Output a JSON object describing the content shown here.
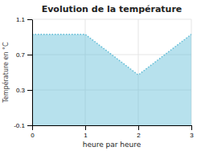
{
  "chart_data": {
    "type": "area",
    "title": "Evolution de la température",
    "x_label": "heure par heure",
    "y_label": "Température en °C",
    "x": [
      0,
      1,
      2,
      3
    ],
    "values": [
      0.93,
      0.93,
      0.47,
      0.93
    ],
    "xlim": [
      0,
      3
    ],
    "ylim": [
      -0.1,
      1.1
    ],
    "xticks": [
      0,
      1,
      2,
      3
    ],
    "yticks": [
      -0.1,
      0.3,
      0.7,
      1.1
    ],
    "color": "#60bcd6",
    "line_style": "dotted",
    "grid": true
  }
}
